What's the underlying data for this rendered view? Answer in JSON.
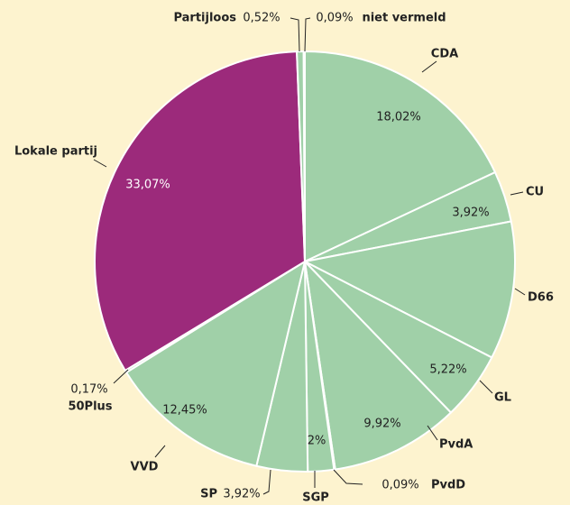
{
  "chart_data": {
    "type": "pie",
    "categories": [
      "CDA",
      "CU",
      "D66",
      "GL",
      "PvdA",
      "PvdD",
      "SGP",
      "SP",
      "VVD",
      "50Plus",
      "Lokale partij",
      "Partijloos",
      "niet vermeld"
    ],
    "values": [
      18.02,
      3.92,
      10.61,
      5.22,
      9.92,
      0.09,
      2,
      3.92,
      12.45,
      0.17,
      33.07,
      0.52,
      0.09
    ],
    "value_labels": [
      "18,02%",
      "3,92%",
      null,
      "5,22%",
      "9,92%",
      "0,09%",
      "2%",
      "3,92%",
      "12,45%",
      "0,17%",
      "33,07%",
      "0,52%",
      "0,09%"
    ],
    "colors": [
      "#a0d0a8",
      "#a0d0a8",
      "#a0d0a8",
      "#a0d0a8",
      "#a0d0a8",
      "#a0d0a8",
      "#a0d0a8",
      "#a0d0a8",
      "#a0d0a8",
      "#a0d0a8",
      "#9c2a7b",
      "#a0d0a8",
      "#a0d0a8"
    ]
  }
}
